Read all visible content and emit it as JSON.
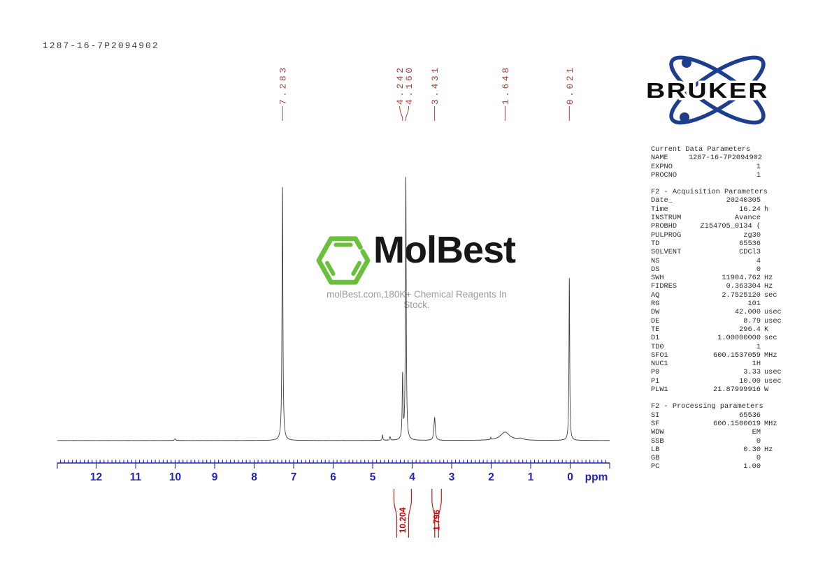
{
  "page": {
    "title": "1287-16-7P2094902"
  },
  "watermark": {
    "brand": "MolBest",
    "tagline": "molBest.com,180K+ Chemical Reagents In Stock.",
    "hex_color": "#6abf3b"
  },
  "bruker": {
    "word": "BRUKER",
    "orbit_color": "#1d3d8e"
  },
  "colors": {
    "axis_blue": "#2121bd",
    "peak_label_red": "#a8403d",
    "integral_red": "#cc0000",
    "trace_gray": "#3f3f3f"
  },
  "chart_data": {
    "type": "line",
    "title": "1287-16-7P2094902",
    "xlabel": "ppm",
    "x_axis": {
      "min": -1.0,
      "max": 13.0,
      "reversed": true,
      "unit_label": "ppm",
      "major_ticks": [
        12,
        11,
        10,
        9,
        8,
        7,
        6,
        5,
        4,
        3,
        2,
        1,
        0
      ],
      "minor_tick_interval": 0.1
    },
    "peaks": [
      {
        "ppm": 10.0,
        "height": 0.006,
        "width": 0.02
      },
      {
        "ppm": 7.283,
        "height": 0.968,
        "width": 0.013,
        "label": "7.283"
      },
      {
        "ppm": 4.75,
        "height": 0.02,
        "width": 0.012
      },
      {
        "ppm": 4.56,
        "height": 0.014,
        "width": 0.012
      },
      {
        "ppm": 4.242,
        "height": 0.24,
        "width": 0.012,
        "label": "4.242"
      },
      {
        "ppm": 4.16,
        "height": 1.0,
        "width": 0.012,
        "label": "4.160"
      },
      {
        "ppm": 3.431,
        "height": 0.088,
        "width": 0.02,
        "label": "3.431"
      },
      {
        "ppm": 2.01,
        "height": 0.009,
        "width": 0.008
      },
      {
        "ppm": 1.648,
        "height": 0.032,
        "width": 0.14,
        "label": "1.648",
        "shape": "broad"
      },
      {
        "ppm": 1.25,
        "height": 0.006,
        "width": 0.08
      },
      {
        "ppm": 0.021,
        "height": 0.62,
        "width": 0.011,
        "label": "0.021"
      }
    ],
    "integrals": [
      {
        "value": "10.204",
        "ppm_from": 4.46,
        "ppm_to": 4.02
      },
      {
        "value": "1.796",
        "ppm_from": 3.5,
        "ppm_to": 3.26
      }
    ]
  },
  "parameters": {
    "sections": [
      {
        "header": "Current Data Parameters",
        "rows": [
          [
            "NAME",
            "1287-16-7P2094902",
            ""
          ],
          [
            "EXPNO",
            "1",
            ""
          ],
          [
            "PROCNO",
            "1",
            ""
          ]
        ]
      },
      {
        "header": "F2 - Acquisition Parameters",
        "rows": [
          [
            "Date_",
            "20240305",
            ""
          ],
          [
            "Time",
            "16.24",
            "h"
          ],
          [
            "INSTRUM",
            "Avance",
            ""
          ],
          [
            "PROBHD",
            "Z154705_0134 (",
            ""
          ],
          [
            "PULPROG",
            "zg30",
            ""
          ],
          [
            "TD",
            "65536",
            ""
          ],
          [
            "SOLVENT",
            "CDCl3",
            ""
          ],
          [
            "NS",
            "4",
            ""
          ],
          [
            "DS",
            "0",
            ""
          ],
          [
            "SWH",
            "11904.762",
            "Hz"
          ],
          [
            "FIDRES",
            "0.363304",
            "Hz"
          ],
          [
            "AQ",
            "2.7525120",
            "sec"
          ],
          [
            "RG",
            "101",
            ""
          ],
          [
            "DW",
            "42.000",
            "usec"
          ],
          [
            "DE",
            "8.79",
            "usec"
          ],
          [
            "TE",
            "296.4",
            "K"
          ],
          [
            "D1",
            "1.00000000",
            "sec"
          ],
          [
            "TD0",
            "1",
            ""
          ],
          [
            "SFO1",
            "600.1537059",
            "MHz"
          ],
          [
            "NUC1",
            "1H",
            ""
          ],
          [
            "P0",
            "3.33",
            "usec"
          ],
          [
            "P1",
            "10.00",
            "usec"
          ],
          [
            "PLW1",
            "21.87999916",
            "W"
          ]
        ]
      },
      {
        "header": "F2 - Processing parameters",
        "rows": [
          [
            "SI",
            "65536",
            ""
          ],
          [
            "SF",
            "600.1500019",
            "MHz"
          ],
          [
            "WDW",
            "EM",
            ""
          ],
          [
            "SSB",
            "0",
            ""
          ],
          [
            "LB",
            "0.30",
            "Hz"
          ],
          [
            "GB",
            "0",
            ""
          ],
          [
            "PC",
            "1.00",
            ""
          ]
        ]
      }
    ]
  }
}
